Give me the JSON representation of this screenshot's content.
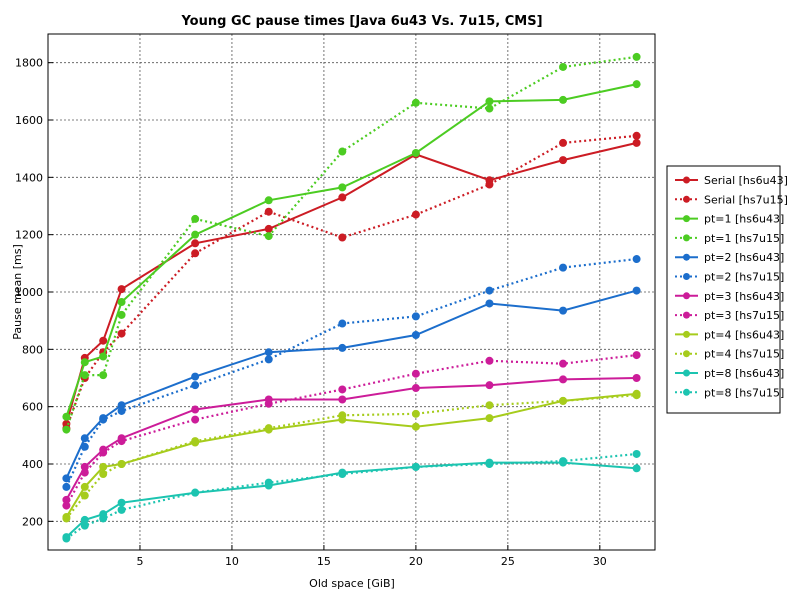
{
  "chart_data": {
    "type": "line",
    "title": "Young GC pause times [Java 6u43 Vs. 7u15, CMS]",
    "xlabel": "Old space [GiB]",
    "ylabel": "Pause mean [ms]",
    "xlim": [
      0,
      33
    ],
    "ylim": [
      100,
      1900
    ],
    "xticks": [
      5,
      10,
      15,
      20,
      25,
      30
    ],
    "yticks": [
      200,
      400,
      600,
      800,
      1000,
      1200,
      1400,
      1600,
      1800
    ],
    "grid": true,
    "legend_position": "right",
    "x": [
      1,
      2,
      3,
      4,
      8,
      12,
      16,
      20,
      24,
      28,
      32
    ],
    "series": [
      {
        "name": "Serial [hs6u43]",
        "color": "#cc1c24",
        "style": "solid",
        "values": [
          540,
          770,
          830,
          1010,
          1170,
          1220,
          1330,
          1480,
          1390,
          1460,
          1520
        ]
      },
      {
        "name": "Serial [hs7u15]",
        "color": "#cc1c24",
        "style": "dotted",
        "values": [
          525,
          700,
          790,
          855,
          1135,
          1280,
          1190,
          1270,
          1375,
          1520,
          1545
        ]
      },
      {
        "name": "pt=1 [hs6u43]",
        "color": "#4ccc22",
        "style": "solid",
        "values": [
          565,
          755,
          775,
          965,
          1200,
          1320,
          1365,
          1485,
          1665,
          1670,
          1725
        ]
      },
      {
        "name": "pt=1 [hs7u15]",
        "color": "#4ccc22",
        "style": "dotted",
        "values": [
          520,
          710,
          710,
          920,
          1255,
          1195,
          1490,
          1660,
          1640,
          1785,
          1820
        ]
      },
      {
        "name": "pt=2 [hs6u43]",
        "color": "#1c6ecc",
        "style": "solid",
        "values": [
          350,
          490,
          560,
          605,
          705,
          790,
          805,
          850,
          960,
          935,
          1005
        ]
      },
      {
        "name": "pt=2 [hs7u15]",
        "color": "#1c6ecc",
        "style": "dotted",
        "values": [
          320,
          460,
          555,
          585,
          675,
          765,
          890,
          915,
          1005,
          1085,
          1115
        ]
      },
      {
        "name": "pt=3 [hs6u43]",
        "color": "#cc1c99",
        "style": "solid",
        "values": [
          275,
          390,
          450,
          490,
          590,
          625,
          625,
          665,
          675,
          695,
          700
        ]
      },
      {
        "name": "pt=3 [hs7u15]",
        "color": "#cc1c99",
        "style": "dotted",
        "values": [
          255,
          370,
          440,
          480,
          555,
          610,
          660,
          715,
          760,
          750,
          780
        ]
      },
      {
        "name": "pt=4 [hs6u43]",
        "color": "#a6cc1c",
        "style": "solid",
        "values": [
          215,
          320,
          390,
          400,
          475,
          520,
          555,
          530,
          560,
          620,
          645
        ]
      },
      {
        "name": "pt=4 [hs7u15]",
        "color": "#a6cc1c",
        "style": "dotted",
        "values": [
          210,
          290,
          365,
          400,
          480,
          525,
          570,
          575,
          605,
          620,
          640
        ]
      },
      {
        "name": "pt=8 [hs6u43]",
        "color": "#1cc4b0",
        "style": "solid",
        "values": [
          145,
          205,
          225,
          265,
          300,
          325,
          370,
          390,
          405,
          405,
          385
        ]
      },
      {
        "name": "pt=8 [hs7u15]",
        "color": "#1cc4b0",
        "style": "dotted",
        "values": [
          140,
          185,
          210,
          240,
          300,
          335,
          365,
          390,
          400,
          410,
          435
        ]
      }
    ]
  }
}
